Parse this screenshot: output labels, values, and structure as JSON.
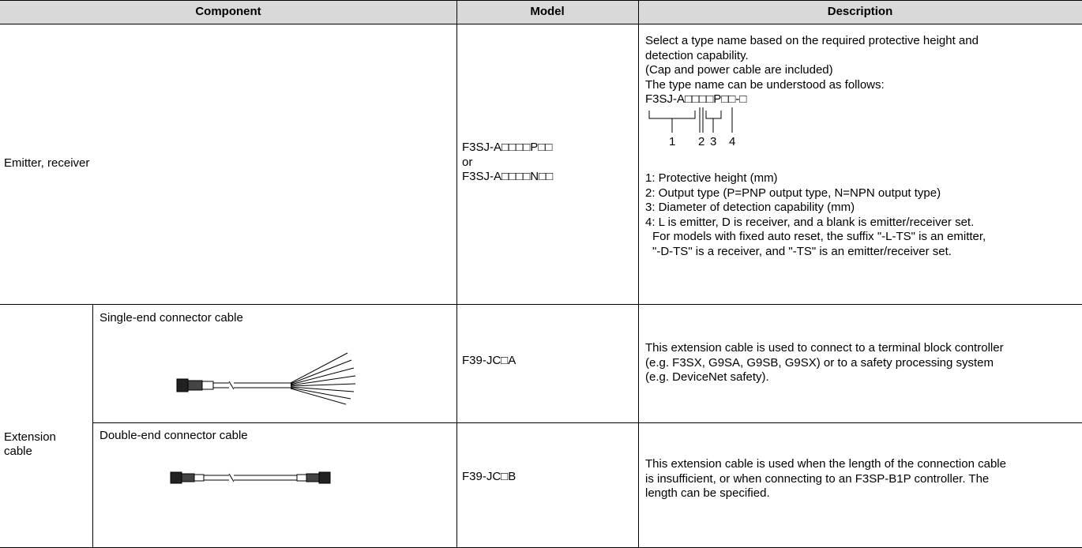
{
  "table": {
    "headers": [
      "Component",
      "Model",
      "Description"
    ],
    "rows": [
      {
        "component": "Emitter, receiver",
        "model": [
          "F3SJ-A□□□□P□□",
          "or",
          "F3SJ-A□□□□N□□"
        ],
        "description": {
          "intro": [
            "Select a type name based on the required protective height and",
            "detection capability.",
            "(Cap and power cable are included)",
            "The type name can be understood as follows:"
          ],
          "type_code": "F3SJ-A□□□□P□□-□",
          "key_numbers": [
            "1",
            "2",
            "3",
            "4"
          ],
          "legend": [
            "1: Protective height (mm)",
            "2: Output type (P=PNP output type, N=NPN output type)",
            "3: Diameter of detection capability (mm)",
            "4: L is emitter, D is receiver, and a blank is emitter/receiver set.",
            "For models with fixed auto reset, the suffix \"-L-TS\" is an emitter,",
            "\"-D-TS\" is a receiver, and \"-TS\" is an emitter/receiver set."
          ]
        }
      },
      {
        "group": "Extension cable",
        "component": "Single-end connector cable",
        "model": [
          "F39-JC□A"
        ],
        "description": [
          "This extension cable is used to connect to a terminal block controller",
          "(e.g. F3SX, G9SA, G9SB, G9SX) or to a safety processing system",
          "(e.g. DeviceNet safety)."
        ]
      },
      {
        "component": "Double-end connector cable",
        "model": [
          "F39-JC□B"
        ],
        "description": [
          "This extension cable is used when the length of the connection cable",
          "is insufficient, or when connecting to an F3SP-B1P controller. The",
          "length can be specified."
        ]
      }
    ]
  }
}
